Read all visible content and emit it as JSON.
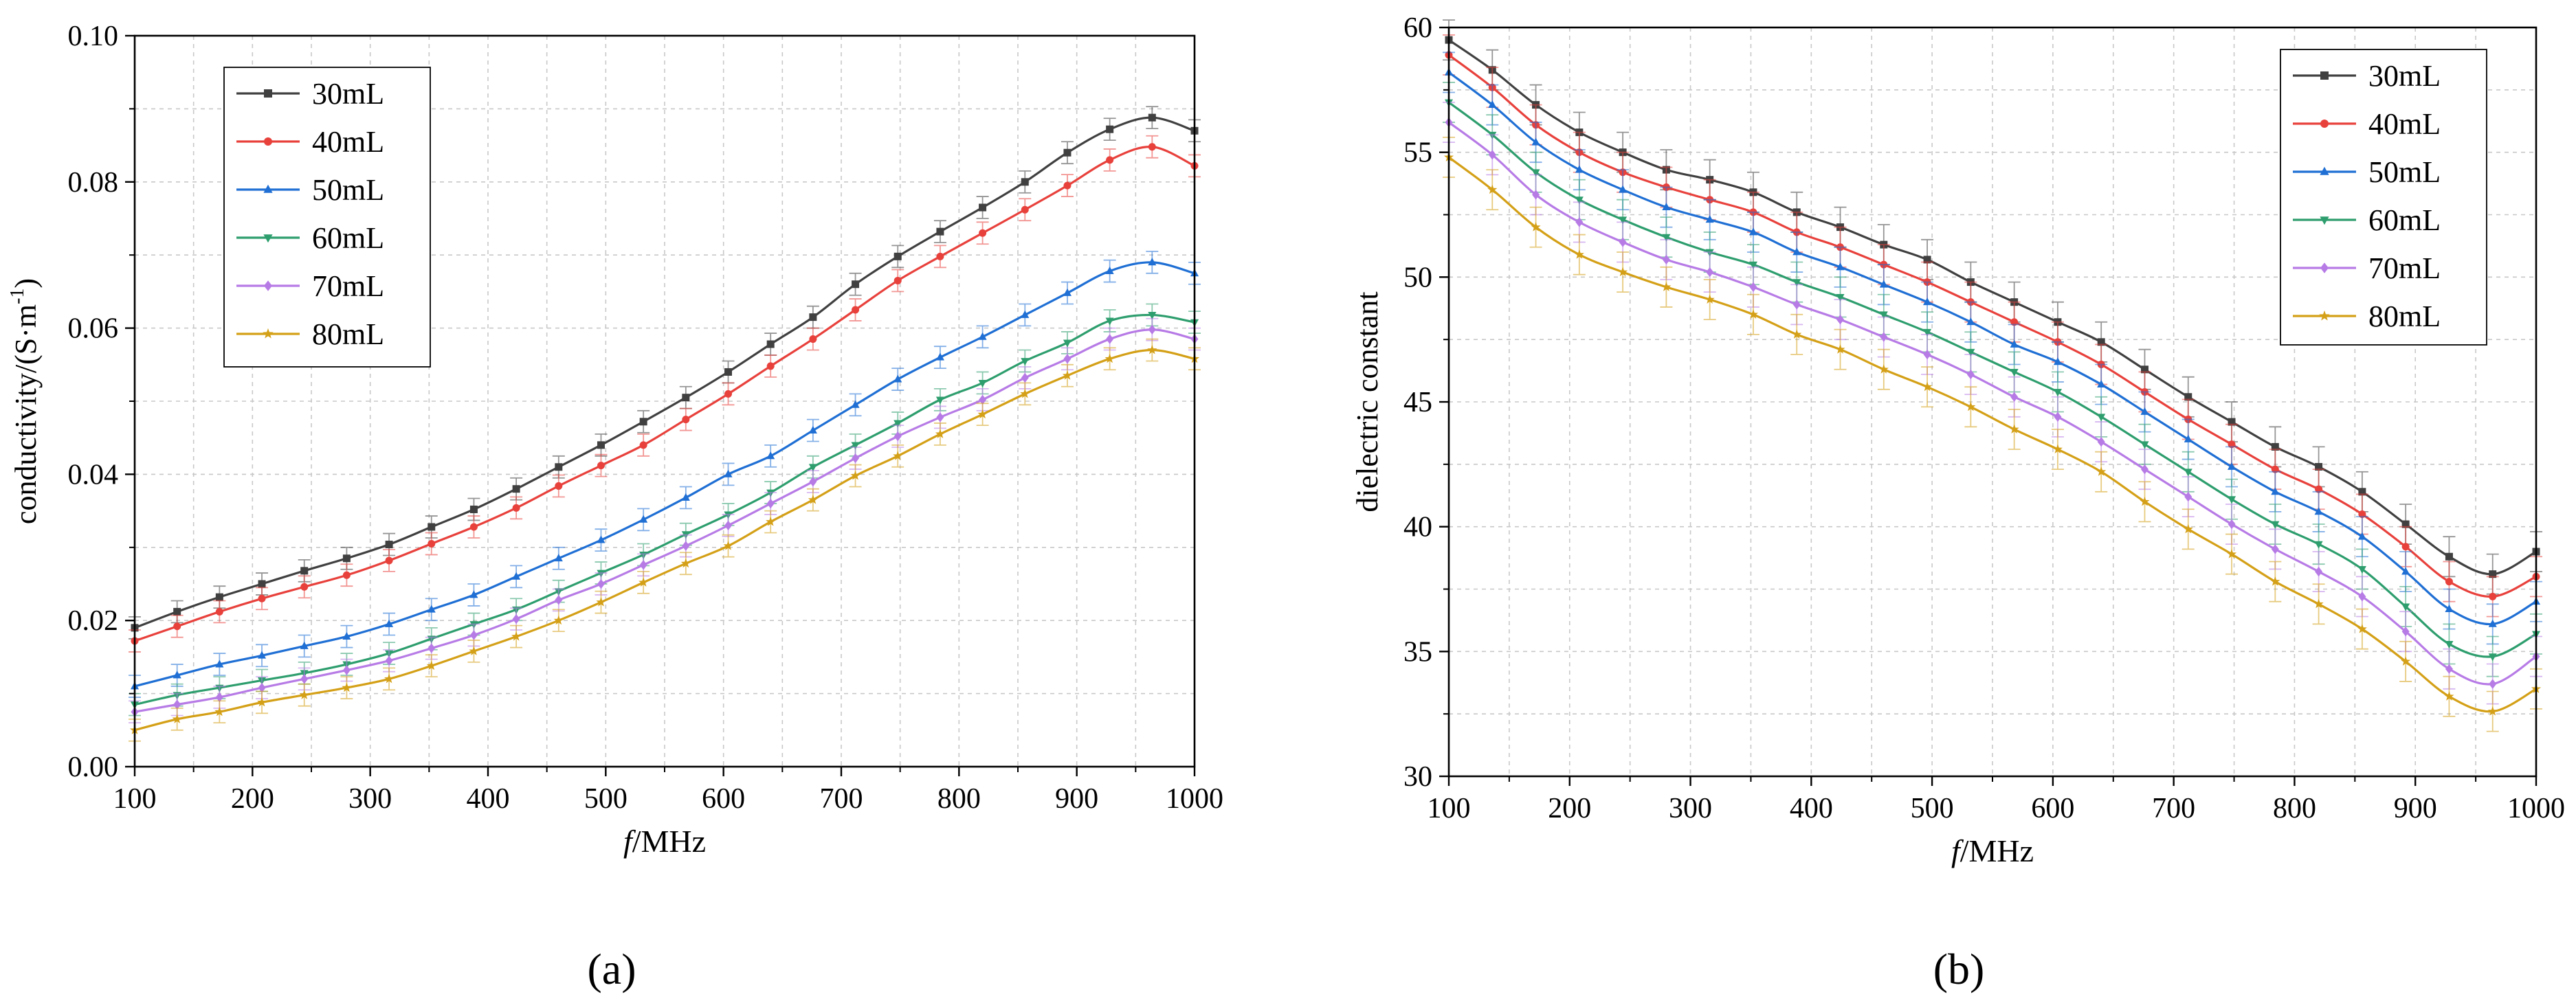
{
  "chart_data": [
    {
      "panel_label": "(a)",
      "type": "line",
      "xlabel": {
        "var": "f",
        "unit": "/MHz"
      },
      "ylabel": "conductivity/(S·m",
      "ylabel_sup": "-1",
      "ylabel_tail": ")",
      "xlim": [
        100,
        1000
      ],
      "ylim": [
        0.0,
        0.1
      ],
      "x_ticks": [
        100,
        200,
        300,
        400,
        500,
        600,
        700,
        800,
        900,
        1000
      ],
      "x_tick_labels": [
        "100",
        "200",
        "300",
        "400",
        "500",
        "600",
        "700",
        "800",
        "900",
        "1000"
      ],
      "y_ticks": [
        0,
        0.02,
        0.04,
        0.06,
        0.08,
        0.1
      ],
      "y_tick_labels": [
        "0.00",
        "0.02",
        "0.04",
        "0.06",
        "0.08",
        "0.10"
      ],
      "grid": true,
      "legend": "top-left",
      "x": [
        100,
        136,
        172,
        208,
        244,
        280,
        316,
        352,
        388,
        424,
        460,
        496,
        532,
        568,
        604,
        640,
        676,
        712,
        748,
        784,
        820,
        856,
        892,
        928,
        964,
        1000
      ],
      "series": [
        {
          "name": "30mL",
          "color": "#404040",
          "marker": "square",
          "values": [
            0.019,
            0.0212,
            0.0232,
            0.025,
            0.0268,
            0.0285,
            0.0304,
            0.0328,
            0.0352,
            0.038,
            0.041,
            0.044,
            0.0472,
            0.0505,
            0.054,
            0.0578,
            0.0615,
            0.066,
            0.0698,
            0.0732,
            0.0765,
            0.08,
            0.084,
            0.0872,
            0.0888,
            0.087
          ],
          "error": 0.0015
        },
        {
          "name": "40mL",
          "color": "#e8413c",
          "marker": "circle",
          "values": [
            0.0172,
            0.0192,
            0.0212,
            0.023,
            0.0246,
            0.0262,
            0.0282,
            0.0305,
            0.0328,
            0.0354,
            0.0384,
            0.0412,
            0.044,
            0.0475,
            0.051,
            0.0548,
            0.0585,
            0.0625,
            0.0665,
            0.0698,
            0.073,
            0.0762,
            0.0795,
            0.083,
            0.0848,
            0.0822
          ],
          "error": 0.0015
        },
        {
          "name": "50mL",
          "color": "#1f6fd4",
          "marker": "triangle-up",
          "values": [
            0.011,
            0.0125,
            0.014,
            0.0152,
            0.0165,
            0.0178,
            0.0195,
            0.0215,
            0.0235,
            0.026,
            0.0285,
            0.031,
            0.0338,
            0.0368,
            0.04,
            0.0425,
            0.046,
            0.0495,
            0.053,
            0.056,
            0.0588,
            0.0618,
            0.0648,
            0.0678,
            0.069,
            0.0675
          ],
          "error": 0.0015
        },
        {
          "name": "60mL",
          "color": "#2e9e6e",
          "marker": "triangle-down",
          "values": [
            0.0085,
            0.0098,
            0.0108,
            0.0118,
            0.0128,
            0.014,
            0.0155,
            0.0175,
            0.0195,
            0.0215,
            0.024,
            0.0265,
            0.029,
            0.0318,
            0.0345,
            0.0375,
            0.041,
            0.044,
            0.047,
            0.0502,
            0.0525,
            0.0555,
            0.058,
            0.061,
            0.0618,
            0.0608
          ],
          "error": 0.0015
        },
        {
          "name": "70mL",
          "color": "#b77be6",
          "marker": "diamond",
          "values": [
            0.0075,
            0.0085,
            0.0095,
            0.0108,
            0.012,
            0.0132,
            0.0145,
            0.0162,
            0.018,
            0.0202,
            0.0228,
            0.025,
            0.0276,
            0.0302,
            0.033,
            0.036,
            0.039,
            0.0422,
            0.0452,
            0.0478,
            0.0502,
            0.0532,
            0.0558,
            0.0585,
            0.0598,
            0.0585
          ],
          "error": 0.0015
        },
        {
          "name": "80mL",
          "color": "#d4a017",
          "marker": "star",
          "values": [
            0.005,
            0.0065,
            0.0075,
            0.0088,
            0.0098,
            0.0108,
            0.012,
            0.0138,
            0.0158,
            0.0178,
            0.02,
            0.0225,
            0.0252,
            0.0278,
            0.0302,
            0.0335,
            0.0365,
            0.0398,
            0.0425,
            0.0455,
            0.0482,
            0.051,
            0.0535,
            0.0558,
            0.057,
            0.0558
          ],
          "error": 0.0015
        }
      ]
    },
    {
      "panel_label": "(b)",
      "type": "line",
      "xlabel": {
        "var": "f",
        "unit": "/MHz"
      },
      "ylabel": "dielectric constant",
      "xlim": [
        100,
        1000
      ],
      "ylim": [
        30,
        60
      ],
      "x_ticks": [
        100,
        200,
        300,
        400,
        500,
        600,
        700,
        800,
        900,
        1000
      ],
      "x_tick_labels": [
        "100",
        "200",
        "300",
        "400",
        "500",
        "600",
        "700",
        "800",
        "900",
        "1000"
      ],
      "y_ticks": [
        30,
        35,
        40,
        45,
        50,
        55,
        60
      ],
      "y_tick_labels": [
        "30",
        "35",
        "40",
        "45",
        "50",
        "55",
        "60"
      ],
      "grid": true,
      "legend": "top-right",
      "x": [
        100,
        136,
        172,
        208,
        244,
        280,
        316,
        352,
        388,
        424,
        460,
        496,
        532,
        568,
        604,
        640,
        676,
        712,
        748,
        784,
        820,
        856,
        892,
        928,
        964,
        1000
      ],
      "series": [
        {
          "name": "30mL",
          "color": "#404040",
          "marker": "square",
          "values": [
            59.5,
            58.3,
            56.9,
            55.8,
            55.0,
            54.3,
            53.9,
            53.4,
            52.6,
            52.0,
            51.3,
            50.7,
            49.8,
            49.0,
            48.2,
            47.4,
            46.3,
            45.2,
            44.2,
            43.2,
            42.4,
            41.4,
            40.1,
            38.8,
            38.1,
            39.0
          ],
          "error": 0.8
        },
        {
          "name": "40mL",
          "color": "#e8413c",
          "marker": "circle",
          "values": [
            58.9,
            57.6,
            56.1,
            55.0,
            54.2,
            53.6,
            53.1,
            52.6,
            51.8,
            51.2,
            50.5,
            49.8,
            49.0,
            48.2,
            47.4,
            46.5,
            45.4,
            44.3,
            43.3,
            42.3,
            41.5,
            40.5,
            39.2,
            37.8,
            37.2,
            38.0
          ],
          "error": 0.8
        },
        {
          "name": "50mL",
          "color": "#1f6fd4",
          "marker": "triangle-up",
          "values": [
            58.2,
            56.9,
            55.4,
            54.3,
            53.5,
            52.8,
            52.3,
            51.8,
            51.0,
            50.4,
            49.7,
            49.0,
            48.2,
            47.3,
            46.6,
            45.7,
            44.6,
            43.5,
            42.4,
            41.4,
            40.6,
            39.6,
            38.2,
            36.7,
            36.1,
            37.0
          ],
          "error": 0.8
        },
        {
          "name": "60mL",
          "color": "#2e9e6e",
          "marker": "triangle-down",
          "values": [
            57.0,
            55.7,
            54.2,
            53.1,
            52.3,
            51.6,
            51.0,
            50.5,
            49.8,
            49.2,
            48.5,
            47.8,
            47.0,
            46.2,
            45.4,
            44.4,
            43.3,
            42.2,
            41.1,
            40.1,
            39.3,
            38.3,
            36.8,
            35.3,
            34.8,
            35.7
          ],
          "error": 0.8
        },
        {
          "name": "70mL",
          "color": "#b77be6",
          "marker": "diamond",
          "values": [
            56.2,
            54.9,
            53.3,
            52.2,
            51.4,
            50.7,
            50.2,
            49.6,
            48.9,
            48.3,
            47.6,
            46.9,
            46.1,
            45.2,
            44.4,
            43.4,
            42.3,
            41.2,
            40.1,
            39.1,
            38.2,
            37.2,
            35.8,
            34.3,
            33.7,
            34.8
          ],
          "error": 0.8
        },
        {
          "name": "80mL",
          "color": "#d4a017",
          "marker": "star",
          "values": [
            54.8,
            53.5,
            52.0,
            50.9,
            50.2,
            49.6,
            49.1,
            48.5,
            47.7,
            47.1,
            46.3,
            45.6,
            44.8,
            43.9,
            43.1,
            42.2,
            41.0,
            39.9,
            38.9,
            37.8,
            36.9,
            35.9,
            34.6,
            33.2,
            32.6,
            33.5
          ],
          "error": 0.8
        }
      ]
    }
  ]
}
